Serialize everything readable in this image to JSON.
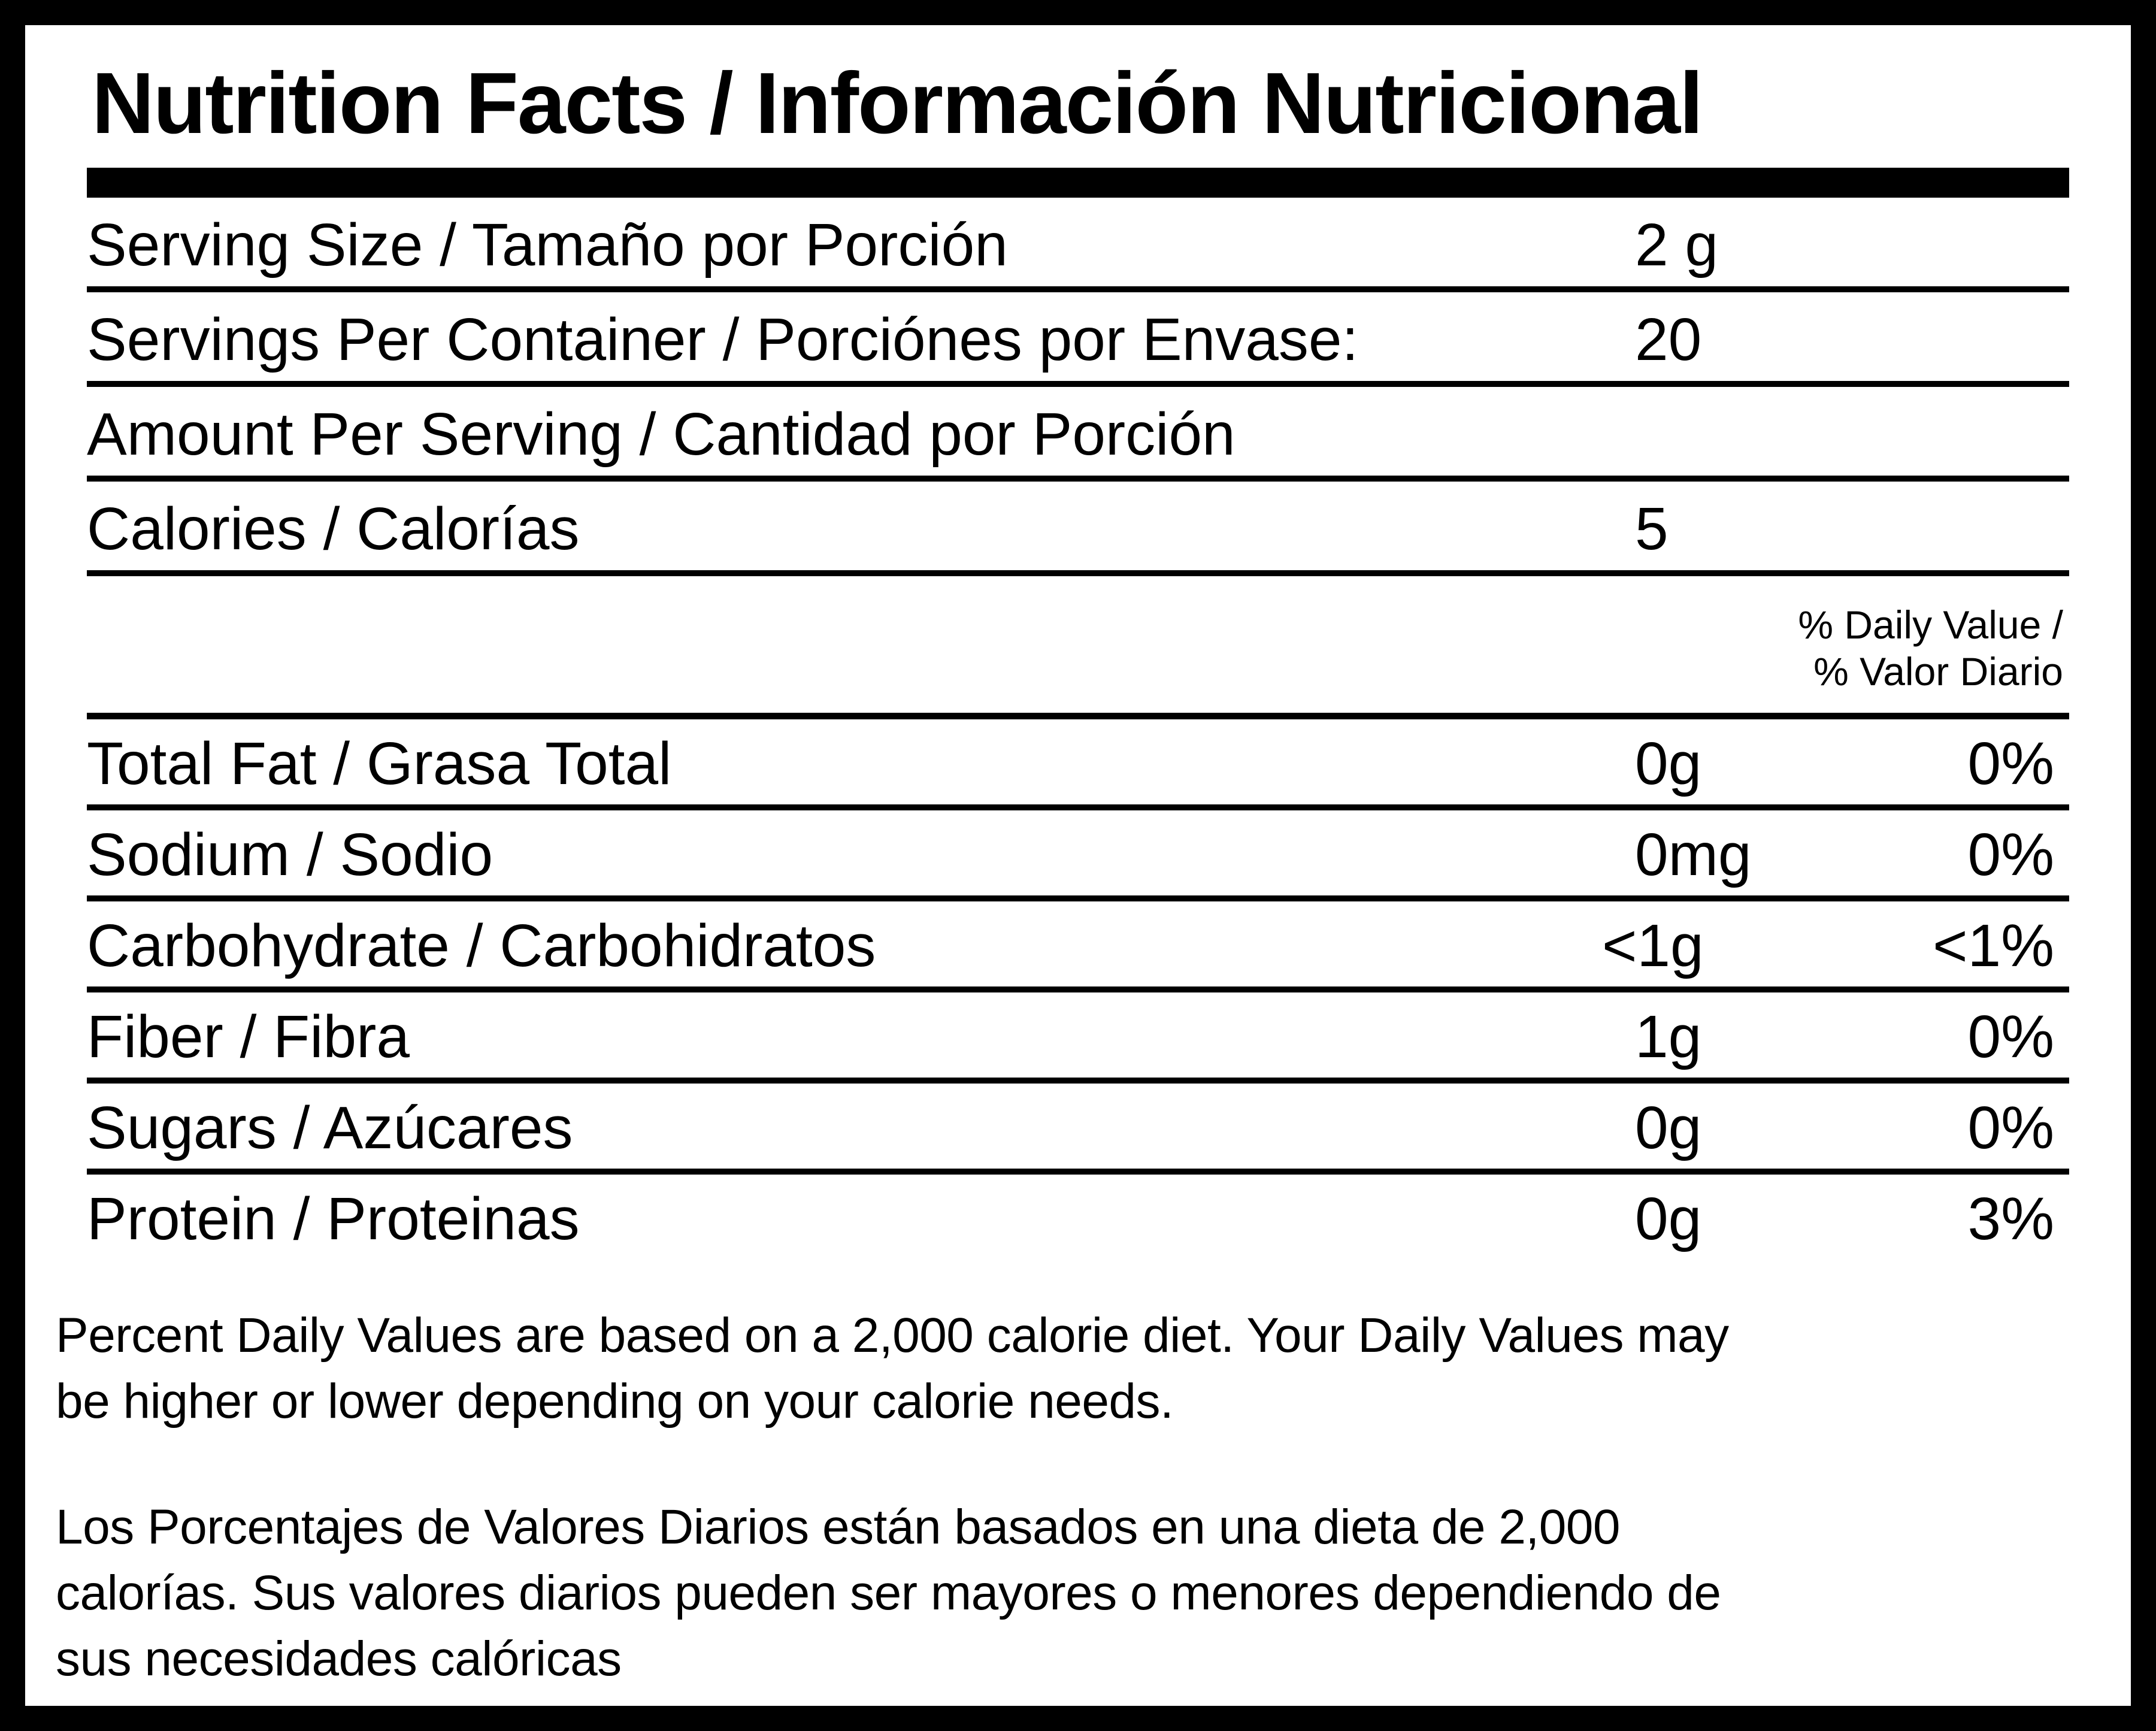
{
  "label": {
    "title": "Nutrition Facts / Información Nutricional",
    "colors": {
      "text": "#000000",
      "background": "#ffffff",
      "border": "#000000"
    },
    "info_rows": [
      {
        "name": "Serving Size / Tamaño por Porción",
        "value": "2 g"
      },
      {
        "name": "Servings Per Container / Porciónes por Envase:",
        "value": "20"
      },
      {
        "name": "Amount Per Serving / Cantidad por Porción",
        "value": ""
      },
      {
        "name": "Calories / Calorías",
        "value": "5"
      }
    ],
    "daily_value_header": [
      "% Daily Value /",
      "% Valor Diario"
    ],
    "nutrients": [
      {
        "name": "Total Fat / Grasa Total",
        "amount": "0g",
        "dv": "0%"
      },
      {
        "name": "Sodium / Sodio",
        "amount": "0mg",
        "dv": "0%"
      },
      {
        "name": "Carbohydrate / Carbohidratos",
        "amount": "<1g",
        "dv": "<1%"
      },
      {
        "name": "Fiber / Fibra",
        "amount": "1g",
        "dv": "0%"
      },
      {
        "name": "Sugars / Azúcares",
        "amount": "0g",
        "dv": "0%"
      },
      {
        "name": "Protein / Proteinas",
        "amount": "0g",
        "dv": "3%"
      }
    ],
    "footnote_en_lines": [
      {
        "text": "Percent Daily Values are based on a 2,000 calorie diet. Your Daily Values may"
      },
      {
        "text": "be higher or lower depending on your calorie needs."
      }
    ],
    "footnote_es_lines": [
      {
        "text": "Los Porcentajes de Valores Diarios están basados en una dieta de 2,000"
      },
      {
        "text": "calorías. Sus valores diarios pueden ser mayores o menores dependiendo de"
      },
      {
        "text": "sus necesidades calóricas"
      }
    ]
  }
}
